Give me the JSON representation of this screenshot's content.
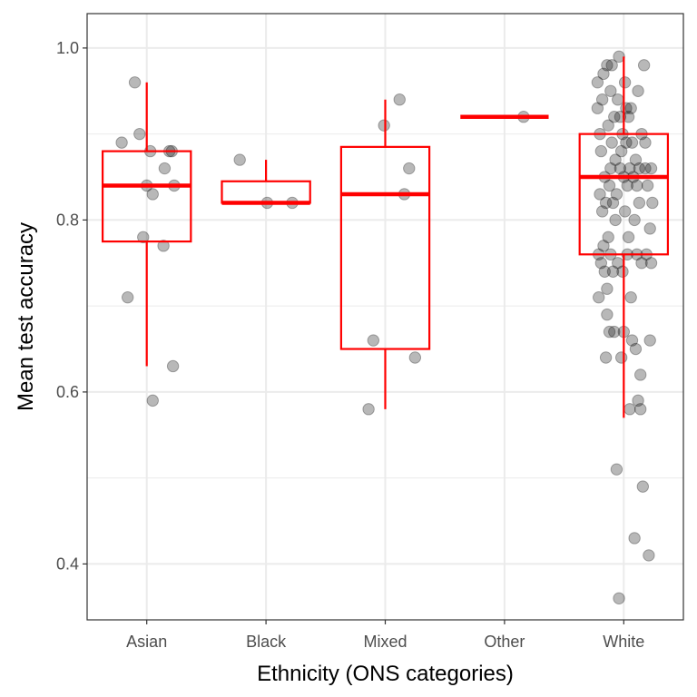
{
  "chart_data": {
    "type": "boxplot",
    "xlabel": "Ethnicity (ONS categories)",
    "ylabel": "Mean test accuracy",
    "categories": [
      "Asian",
      "Black",
      "Mixed",
      "Other",
      "White"
    ],
    "y_ticks": [
      "0.4",
      "0.6",
      "0.8",
      "1.0"
    ],
    "ylim": [
      0.335,
      1.04
    ],
    "grid": true,
    "colors": {
      "box": "#ff0000",
      "points": "#000000",
      "grid": "#ebebeb",
      "panel_border": "#333333"
    },
    "boxes": [
      {
        "category": "Asian",
        "whisker_low": 0.63,
        "q1": 0.775,
        "median": 0.84,
        "q3": 0.88,
        "whisker_high": 0.96
      },
      {
        "category": "Black",
        "whisker_low": 0.82,
        "q1": 0.82,
        "median": 0.82,
        "q3": 0.845,
        "whisker_high": 0.87
      },
      {
        "category": "Mixed",
        "whisker_low": 0.58,
        "q1": 0.65,
        "median": 0.83,
        "q3": 0.885,
        "whisker_high": 0.94
      },
      {
        "category": "Other",
        "whisker_low": 0.92,
        "q1": 0.92,
        "median": 0.92,
        "q3": 0.92,
        "whisker_high": 0.92
      },
      {
        "category": "White",
        "whisker_low": 0.57,
        "q1": 0.76,
        "median": 0.85,
        "q3": 0.9,
        "whisker_high": 0.99
      }
    ],
    "points": {
      "Asian": [
        {
          "x": -0.21,
          "y": 0.89
        },
        {
          "x": -0.16,
          "y": 0.71
        },
        {
          "x": -0.1,
          "y": 0.96
        },
        {
          "x": -0.06,
          "y": 0.9
        },
        {
          "x": -0.03,
          "y": 0.78
        },
        {
          "x": 0.0,
          "y": 0.84
        },
        {
          "x": 0.03,
          "y": 0.88
        },
        {
          "x": 0.05,
          "y": 0.83
        },
        {
          "x": 0.05,
          "y": 0.59
        },
        {
          "x": 0.14,
          "y": 0.77
        },
        {
          "x": 0.15,
          "y": 0.86
        },
        {
          "x": 0.19,
          "y": 0.88
        },
        {
          "x": 0.21,
          "y": 0.88
        },
        {
          "x": 0.22,
          "y": 0.63
        },
        {
          "x": 0.23,
          "y": 0.84
        }
      ],
      "Black": [
        {
          "x": -0.22,
          "y": 0.87
        },
        {
          "x": 0.01,
          "y": 0.82
        },
        {
          "x": 0.22,
          "y": 0.82
        }
      ],
      "Mixed": [
        {
          "x": -0.14,
          "y": 0.58
        },
        {
          "x": -0.1,
          "y": 0.66
        },
        {
          "x": -0.01,
          "y": 0.91
        },
        {
          "x": 0.12,
          "y": 0.94
        },
        {
          "x": 0.16,
          "y": 0.83
        },
        {
          "x": 0.2,
          "y": 0.86
        },
        {
          "x": 0.25,
          "y": 0.64
        }
      ],
      "Other": [
        {
          "x": 0.16,
          "y": 0.92
        }
      ],
      "White": [
        {
          "x": -0.22,
          "y": 0.93
        },
        {
          "x": -0.22,
          "y": 0.96
        },
        {
          "x": -0.21,
          "y": 0.71
        },
        {
          "x": -0.21,
          "y": 0.76
        },
        {
          "x": -0.2,
          "y": 0.83
        },
        {
          "x": -0.2,
          "y": 0.9
        },
        {
          "x": -0.19,
          "y": 0.75
        },
        {
          "x": -0.19,
          "y": 0.88
        },
        {
          "x": -0.18,
          "y": 0.81
        },
        {
          "x": -0.18,
          "y": 0.94
        },
        {
          "x": -0.17,
          "y": 0.97
        },
        {
          "x": -0.17,
          "y": 0.77
        },
        {
          "x": -0.16,
          "y": 0.74
        },
        {
          "x": -0.16,
          "y": 0.85
        },
        {
          "x": -0.15,
          "y": 0.64
        },
        {
          "x": -0.15,
          "y": 0.82
        },
        {
          "x": -0.14,
          "y": 0.98
        },
        {
          "x": -0.14,
          "y": 0.69
        },
        {
          "x": -0.14,
          "y": 0.72
        },
        {
          "x": -0.13,
          "y": 0.91
        },
        {
          "x": -0.13,
          "y": 0.78
        },
        {
          "x": -0.12,
          "y": 0.67
        },
        {
          "x": -0.12,
          "y": 0.84
        },
        {
          "x": -0.11,
          "y": 0.95
        },
        {
          "x": -0.11,
          "y": 0.76
        },
        {
          "x": -0.11,
          "y": 0.86
        },
        {
          "x": -0.1,
          "y": 0.98
        },
        {
          "x": -0.1,
          "y": 0.89
        },
        {
          "x": -0.09,
          "y": 0.82
        },
        {
          "x": -0.09,
          "y": 0.74
        },
        {
          "x": -0.08,
          "y": 0.67
        },
        {
          "x": -0.08,
          "y": 0.92
        },
        {
          "x": -0.07,
          "y": 0.87
        },
        {
          "x": -0.07,
          "y": 0.8
        },
        {
          "x": -0.06,
          "y": 0.51
        },
        {
          "x": -0.06,
          "y": 0.83
        },
        {
          "x": -0.05,
          "y": 0.94
        },
        {
          "x": -0.05,
          "y": 0.75
        },
        {
          "x": -0.04,
          "y": 0.99
        },
        {
          "x": -0.04,
          "y": 0.36
        },
        {
          "x": -0.03,
          "y": 0.86
        },
        {
          "x": -0.03,
          "y": 0.92
        },
        {
          "x": -0.02,
          "y": 0.64
        },
        {
          "x": -0.02,
          "y": 0.88
        },
        {
          "x": -0.01,
          "y": 0.74
        },
        {
          "x": -0.01,
          "y": 0.9
        },
        {
          "x": 0.0,
          "y": 0.85
        },
        {
          "x": 0.0,
          "y": 0.67
        },
        {
          "x": 0.01,
          "y": 0.81
        },
        {
          "x": 0.01,
          "y": 0.96
        },
        {
          "x": 0.02,
          "y": 0.93
        },
        {
          "x": 0.02,
          "y": 0.89
        },
        {
          "x": 0.03,
          "y": 0.76
        },
        {
          "x": 0.03,
          "y": 0.84
        },
        {
          "x": 0.04,
          "y": 0.92
        },
        {
          "x": 0.04,
          "y": 0.78
        },
        {
          "x": 0.05,
          "y": 0.58
        },
        {
          "x": 0.05,
          "y": 0.86
        },
        {
          "x": 0.06,
          "y": 0.93
        },
        {
          "x": 0.06,
          "y": 0.71
        },
        {
          "x": 0.07,
          "y": 0.89
        },
        {
          "x": 0.07,
          "y": 0.66
        },
        {
          "x": 0.08,
          "y": 0.85
        },
        {
          "x": 0.09,
          "y": 0.8
        },
        {
          "x": 0.09,
          "y": 0.43
        },
        {
          "x": 0.1,
          "y": 0.87
        },
        {
          "x": 0.1,
          "y": 0.65
        },
        {
          "x": 0.11,
          "y": 0.76
        },
        {
          "x": 0.11,
          "y": 0.84
        },
        {
          "x": 0.12,
          "y": 0.95
        },
        {
          "x": 0.12,
          "y": 0.59
        },
        {
          "x": 0.13,
          "y": 0.82
        },
        {
          "x": 0.13,
          "y": 0.86
        },
        {
          "x": 0.14,
          "y": 0.58
        },
        {
          "x": 0.14,
          "y": 0.62
        },
        {
          "x": 0.15,
          "y": 0.75
        },
        {
          "x": 0.15,
          "y": 0.9
        },
        {
          "x": 0.16,
          "y": 0.49
        },
        {
          "x": 0.17,
          "y": 0.98
        },
        {
          "x": 0.18,
          "y": 0.86
        },
        {
          "x": 0.18,
          "y": 0.89
        },
        {
          "x": 0.19,
          "y": 0.76
        },
        {
          "x": 0.2,
          "y": 0.84
        },
        {
          "x": 0.21,
          "y": 0.41
        },
        {
          "x": 0.22,
          "y": 0.66
        },
        {
          "x": 0.22,
          "y": 0.79
        },
        {
          "x": 0.23,
          "y": 0.86
        },
        {
          "x": 0.23,
          "y": 0.75
        },
        {
          "x": 0.24,
          "y": 0.82
        }
      ]
    }
  }
}
